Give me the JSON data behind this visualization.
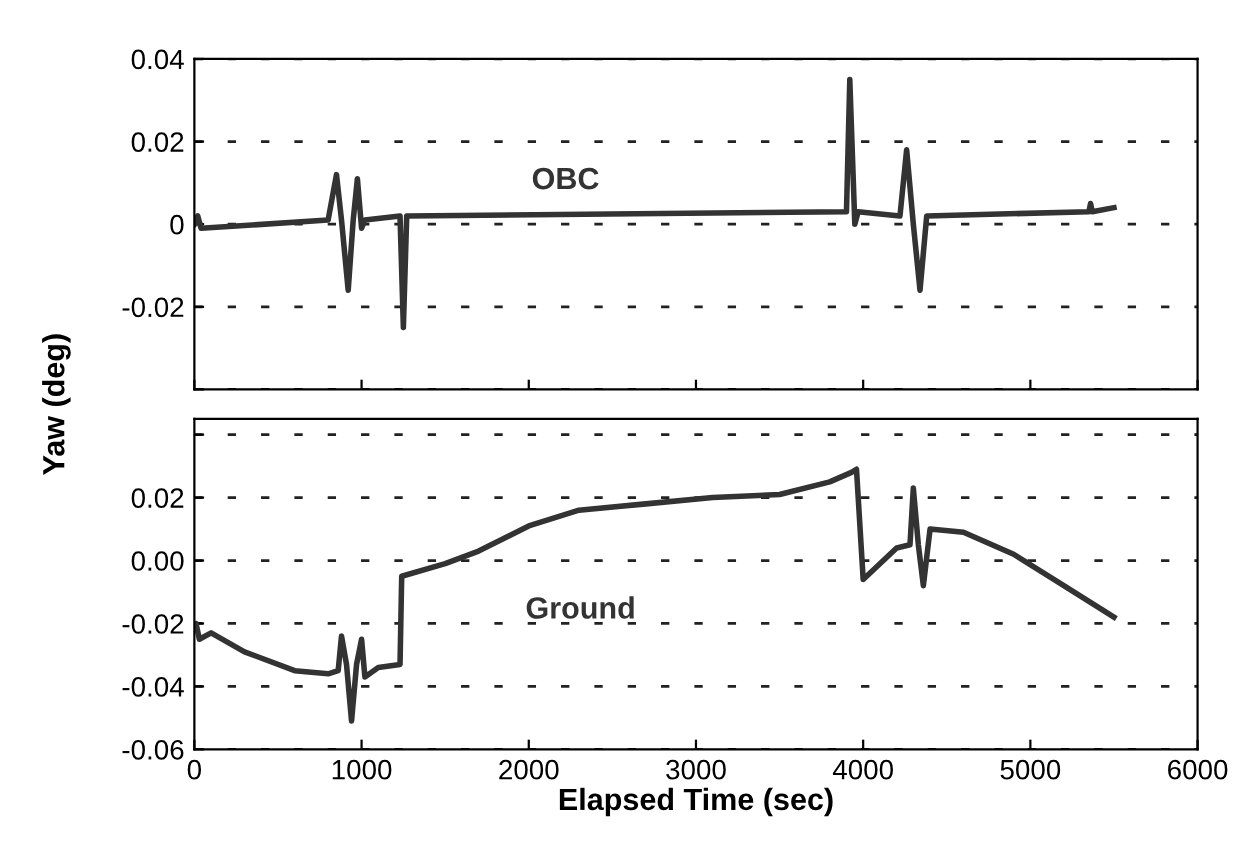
{
  "chart_data": [
    {
      "type": "line",
      "ylabel": "Yaw (deg)",
      "xlim": [
        0,
        6000
      ],
      "xticks": [
        0,
        1000,
        2000,
        3000,
        4000,
        5000,
        6000
      ],
      "ylim": [
        -0.04,
        0.04
      ],
      "yticks": [
        {
          "value": -0.04,
          "label": null
        },
        -0.02,
        {
          "value": 0,
          "label": "0"
        },
        0.02,
        0.04
      ],
      "tick_labels": "y",
      "grid": "y",
      "line_style": "solid",
      "series": [
        {
          "name": "OBC",
          "color": "#333333",
          "x": [
            0,
            20,
            40,
            800,
            850,
            880,
            920,
            950,
            975,
            1000,
            1020,
            1230,
            1250,
            1270,
            3900,
            3920,
            3950,
            3970,
            4220,
            4260,
            4300,
            4340,
            4380,
            5350,
            5360,
            5370,
            5500
          ],
          "values": [
            0,
            0.002,
            -0.001,
            0.001,
            0.012,
            0.001,
            -0.016,
            0.001,
            0.011,
            -0.001,
            0.001,
            0.002,
            -0.025,
            0.002,
            0.003,
            0.035,
            0,
            0.003,
            0.002,
            0.018,
            0,
            -0.016,
            0.002,
            0.003,
            0.005,
            0.003,
            0.004
          ]
        }
      ]
    },
    {
      "type": "line",
      "xlabel": "Elapsed Time (sec)",
      "xlim": [
        0,
        6000
      ],
      "xticks": [
        0,
        1000,
        2000,
        3000,
        4000,
        5000,
        6000
      ],
      "ylim": [
        -0.06,
        0.045
      ],
      "yticks": [
        {
          "value": -0.06,
          "label": "-0.06"
        },
        {
          "value": -0.04,
          "label": "-0.04"
        },
        {
          "value": -0.02,
          "label": "-0.02"
        },
        {
          "value": 0,
          "label": "0.00"
        },
        {
          "value": 0.02,
          "label": "0.02"
        },
        {
          "value": 0.04,
          "label": null
        }
      ],
      "grid": "y",
      "line_style": "solid",
      "series": [
        {
          "name": "Ground",
          "color": "#333333",
          "x": [
            0,
            10,
            30,
            100,
            300,
            600,
            800,
            860,
            880,
            910,
            940,
            970,
            1000,
            1020,
            1100,
            1230,
            1240,
            1500,
            1700,
            2000,
            2300,
            2700,
            3100,
            3500,
            3800,
            3930,
            3960,
            4000,
            4200,
            4280,
            4300,
            4330,
            4360,
            4400,
            4600,
            4900,
            5200,
            5350,
            5500
          ],
          "values": [
            -0.022,
            -0.02,
            -0.025,
            -0.023,
            -0.029,
            -0.035,
            -0.036,
            -0.035,
            -0.024,
            -0.033,
            -0.051,
            -0.033,
            -0.025,
            -0.037,
            -0.034,
            -0.033,
            -0.005,
            -0.001,
            0.003,
            0.011,
            0.016,
            0.018,
            0.02,
            0.021,
            0.025,
            0.028,
            0.029,
            -0.006,
            0.004,
            0.005,
            0.023,
            0.005,
            -0.008,
            0.01,
            0.009,
            0.002,
            -0.008,
            -0.013,
            -0.018
          ]
        }
      ]
    }
  ]
}
